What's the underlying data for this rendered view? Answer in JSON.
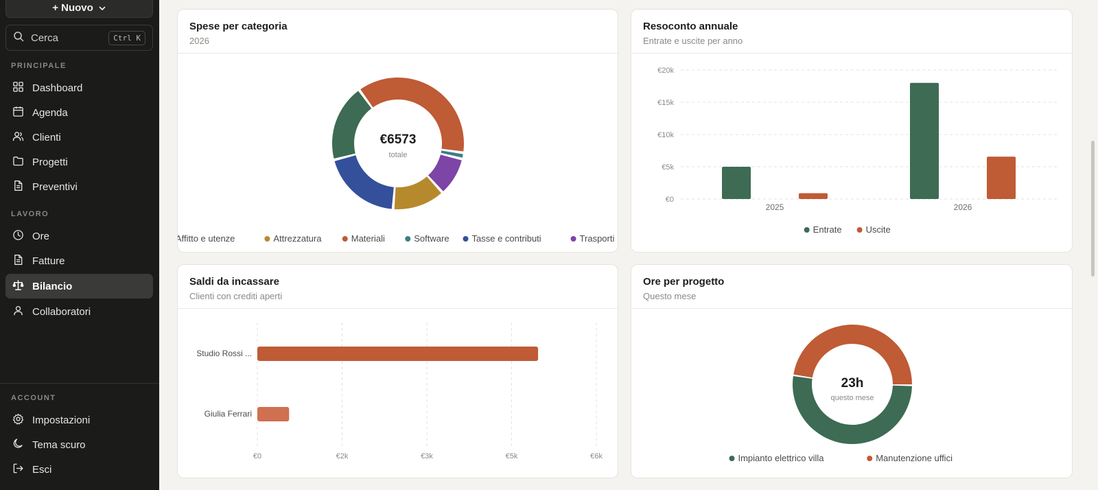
{
  "sidebar": {
    "new_button": "+ Nuovo",
    "search": {
      "placeholder": "Cerca",
      "shortcut": "Ctrl K"
    },
    "sections": [
      {
        "label": "PRINCIPALE",
        "items": [
          {
            "label": "Dashboard",
            "icon": "dashboard-icon"
          },
          {
            "label": "Agenda",
            "icon": "calendar-icon"
          },
          {
            "label": "Clienti",
            "icon": "users-icon"
          },
          {
            "label": "Progetti",
            "icon": "folder-icon"
          },
          {
            "label": "Preventivi",
            "icon": "document-icon"
          }
        ]
      },
      {
        "label": "LAVORO",
        "items": [
          {
            "label": "Ore",
            "icon": "clock-icon"
          },
          {
            "label": "Fatture",
            "icon": "invoice-icon"
          },
          {
            "label": "Bilancio",
            "icon": "scale-icon",
            "active": true
          },
          {
            "label": "Collaboratori",
            "icon": "user-icon"
          }
        ]
      },
      {
        "label": "ACCOUNT",
        "items": [
          {
            "label": "Impostazioni",
            "icon": "gear-icon"
          },
          {
            "label": "Tema scuro",
            "icon": "moon-icon"
          },
          {
            "label": "Esci",
            "icon": "logout-icon"
          }
        ]
      }
    ]
  },
  "cards": {
    "expenses": {
      "title": "Spese per categoria",
      "subtitle": "2026",
      "center_value": "€6573",
      "center_label": "totale"
    },
    "annual": {
      "title": "Resoconto annuale",
      "subtitle": "Entrate e uscite per anno"
    },
    "balances": {
      "title": "Saldi da incassare",
      "subtitle": "Clienti con crediti aperti"
    },
    "hours": {
      "title": "Ore per progetto",
      "subtitle": "Questo mese",
      "center_value": "23h",
      "center_label": "questo mese"
    }
  },
  "colors": {
    "green": "#3d6b54",
    "orange": "#bf5b35",
    "gold": "#b68a2c",
    "teal": "#3b7f88",
    "blue": "#34509a",
    "purple": "#7c45a6",
    "light_orange": "#cf7050"
  },
  "chart_data": [
    {
      "type": "pie",
      "title": "Spese per categoria",
      "subtitle": "2026",
      "categories": [
        "Affitto e utenze",
        "Attrezzatura",
        "Materiali",
        "Software",
        "Tasse e contributi",
        "Trasporti"
      ],
      "values": [
        1250,
        850,
        2450,
        100,
        1300,
        623
      ],
      "colors": [
        "#3d6b54",
        "#b68a2c",
        "#bf5b35",
        "#3b7f88",
        "#34509a",
        "#7c45a6"
      ],
      "legend": "bottom"
    },
    {
      "type": "bar",
      "title": "Resoconto annuale",
      "categories": [
        "2025",
        "2026"
      ],
      "series": [
        {
          "name": "Entrate",
          "values": [
            5000,
            18000
          ],
          "color": "#3d6b54"
        },
        {
          "name": "Uscite",
          "values": [
            900,
            6573
          ],
          "color": "#bf5b35"
        }
      ],
      "ylim": [
        0,
        20000
      ],
      "yticks": [
        "€0",
        "€5k",
        "€10k",
        "€15k",
        "€20k"
      ],
      "grid": true,
      "legend": "bottom"
    },
    {
      "type": "bar",
      "orientation": "horizontal",
      "title": "Saldi da incassare",
      "categories": [
        "Studio Rossi ...",
        "Giulia Ferrari"
      ],
      "values": [
        5300,
        600
      ],
      "colors": [
        "#bf5b35",
        "#cf7050"
      ],
      "xticks": [
        "€0",
        "€2k",
        "€3k",
        "€5k",
        "€6k"
      ],
      "xlim": [
        0,
        6400
      ],
      "grid": true
    },
    {
      "type": "pie",
      "title": "Ore per progetto",
      "subtitle": "Questo mese",
      "categories": [
        "Impianto elettrico villa",
        "Manutenzione uffici"
      ],
      "values": [
        12,
        11
      ],
      "colors": [
        "#3d6b54",
        "#bf5b35"
      ],
      "legend": "bottom"
    }
  ]
}
